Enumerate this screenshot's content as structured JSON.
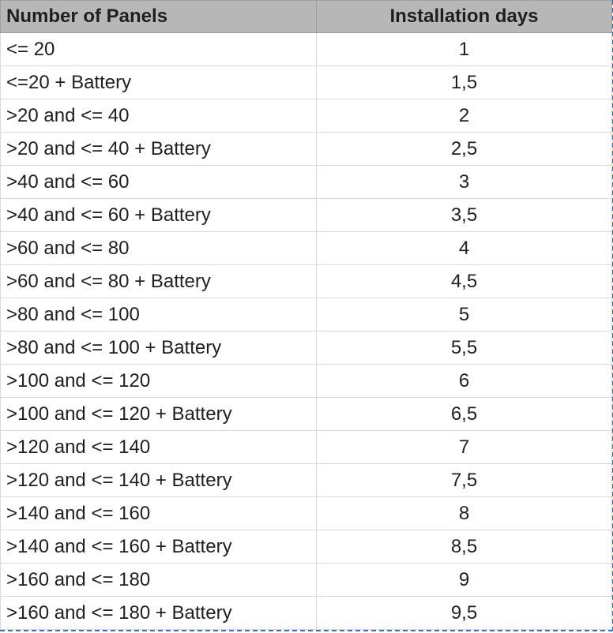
{
  "table": {
    "headers": [
      "Number of Panels",
      "Installation days"
    ],
    "rows": [
      [
        "<= 20",
        "1"
      ],
      [
        "<=20 + Battery",
        "1,5"
      ],
      [
        ">20 and <= 40",
        "2"
      ],
      [
        ">20 and <= 40 + Battery",
        "2,5"
      ],
      [
        ">40 and <= 60",
        "3"
      ],
      [
        ">40 and <= 60 + Battery",
        "3,5"
      ],
      [
        ">60 and <= 80",
        "4"
      ],
      [
        ">60 and <= 80 + Battery",
        "4,5"
      ],
      [
        ">80 and <= 100",
        "5"
      ],
      [
        ">80 and <= 100 + Battery",
        "5,5"
      ],
      [
        ">100 and <= 120",
        "6"
      ],
      [
        ">100 and <= 120 + Battery",
        "6,5"
      ],
      [
        ">120 and <= 140",
        "7"
      ],
      [
        ">120 and <= 140 + Battery",
        "7,5"
      ],
      [
        ">140 and <= 160",
        "8"
      ],
      [
        ">140 and <= 160 + Battery",
        "8,5"
      ],
      [
        ">160 and <= 180",
        "9"
      ],
      [
        ">160 and <= 180 + Battery",
        "9,5"
      ]
    ]
  },
  "colors": {
    "header_bg": "#b7b7b7",
    "grid_line": "#d9d9d9",
    "selection_border": "#2f6fd6"
  }
}
